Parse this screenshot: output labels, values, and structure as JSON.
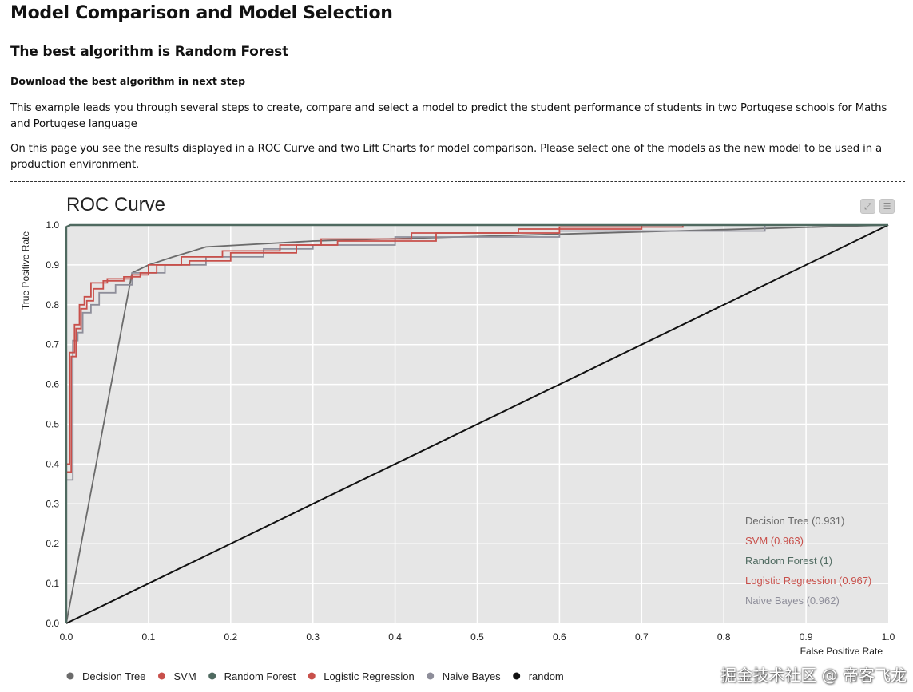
{
  "page": {
    "title": "Model Comparison and Model Selection",
    "subtitle": "The best algorithm is Random Forest",
    "download_note": "Download the best algorithm in next step",
    "paragraph1": "This example leads you through several steps to create, compare and select a model to predict the student performance of students in two Portugese schools for Maths and Portugese language",
    "paragraph2": "On this page you see the results displayed in a ROC Curve and two Lift Charts for model comparison. Please select one of the models as the new model to be used in a production environment."
  },
  "toolbar": {
    "expand_icon": "expand-icon",
    "menu_icon": "menu-icon"
  },
  "watermark": "掘金技术社区 @ 帝客飞龙",
  "chart_data": {
    "type": "line",
    "title": "ROC Curve",
    "xlabel": "False Positive Rate",
    "ylabel": "True Positive Rate",
    "xlim": [
      0,
      1
    ],
    "ylim": [
      0,
      1
    ],
    "grid": true,
    "x_ticks": [
      "0.0",
      "0.1",
      "0.2",
      "0.3",
      "0.4",
      "0.5",
      "0.6",
      "0.7",
      "0.8",
      "0.9",
      "1.0"
    ],
    "y_ticks": [
      "0.0",
      "0.1",
      "0.2",
      "0.3",
      "0.4",
      "0.5",
      "0.6",
      "0.7",
      "0.8",
      "0.9",
      "1.0"
    ],
    "inner_legend_placement": "bottom-right",
    "bottom_legend_placement": "bottom",
    "series": [
      {
        "name": "Decision Tree",
        "auc_label": "Decision Tree (0.931)",
        "color": "#6b6b6b",
        "step": false,
        "points": [
          [
            0,
            0
          ],
          [
            0.08,
            0.88
          ],
          [
            0.1,
            0.9
          ],
          [
            0.13,
            0.92
          ],
          [
            0.17,
            0.945
          ],
          [
            0.3,
            0.96
          ],
          [
            1,
            1
          ]
        ]
      },
      {
        "name": "SVM",
        "auc_label": "SVM (0.963)",
        "color": "#c8504b",
        "step": true,
        "points": [
          [
            0,
            0
          ],
          [
            0,
            0.38
          ],
          [
            0.006,
            0.38
          ],
          [
            0.006,
            0.67
          ],
          [
            0.012,
            0.67
          ],
          [
            0.012,
            0.74
          ],
          [
            0.018,
            0.74
          ],
          [
            0.018,
            0.79
          ],
          [
            0.025,
            0.79
          ],
          [
            0.025,
            0.81
          ],
          [
            0.033,
            0.81
          ],
          [
            0.033,
            0.84
          ],
          [
            0.045,
            0.84
          ],
          [
            0.045,
            0.86
          ],
          [
            0.07,
            0.86
          ],
          [
            0.07,
            0.87
          ],
          [
            0.09,
            0.87
          ],
          [
            0.09,
            0.88
          ],
          [
            0.11,
            0.88
          ],
          [
            0.11,
            0.9
          ],
          [
            0.15,
            0.9
          ],
          [
            0.15,
            0.91
          ],
          [
            0.2,
            0.91
          ],
          [
            0.2,
            0.93
          ],
          [
            0.28,
            0.93
          ],
          [
            0.28,
            0.95
          ],
          [
            0.33,
            0.95
          ],
          [
            0.33,
            0.96
          ],
          [
            0.45,
            0.96
          ],
          [
            0.45,
            0.98
          ],
          [
            0.6,
            0.98
          ],
          [
            0.6,
            0.995
          ],
          [
            0.75,
            0.995
          ],
          [
            0.75,
            1
          ],
          [
            1,
            1
          ]
        ]
      },
      {
        "name": "Random Forest",
        "auc_label": "Random Forest (1)",
        "color": "#4f6a60",
        "step": false,
        "points": [
          [
            0,
            0
          ],
          [
            0,
            0.995
          ],
          [
            0.005,
            1
          ],
          [
            1,
            1
          ]
        ]
      },
      {
        "name": "Logistic Regression",
        "auc_label": "Logistic Regression (0.967)",
        "color": "#c8504b",
        "step": true,
        "points": [
          [
            0,
            0
          ],
          [
            0,
            0.4
          ],
          [
            0.004,
            0.4
          ],
          [
            0.004,
            0.68
          ],
          [
            0.01,
            0.68
          ],
          [
            0.01,
            0.75
          ],
          [
            0.016,
            0.75
          ],
          [
            0.016,
            0.8
          ],
          [
            0.022,
            0.8
          ],
          [
            0.022,
            0.82
          ],
          [
            0.03,
            0.82
          ],
          [
            0.03,
            0.855
          ],
          [
            0.05,
            0.855
          ],
          [
            0.05,
            0.865
          ],
          [
            0.08,
            0.865
          ],
          [
            0.08,
            0.875
          ],
          [
            0.1,
            0.875
          ],
          [
            0.1,
            0.9
          ],
          [
            0.14,
            0.9
          ],
          [
            0.14,
            0.92
          ],
          [
            0.19,
            0.92
          ],
          [
            0.19,
            0.935
          ],
          [
            0.26,
            0.935
          ],
          [
            0.26,
            0.95
          ],
          [
            0.31,
            0.95
          ],
          [
            0.31,
            0.965
          ],
          [
            0.42,
            0.965
          ],
          [
            0.42,
            0.98
          ],
          [
            0.55,
            0.98
          ],
          [
            0.55,
            0.99
          ],
          [
            0.7,
            0.99
          ],
          [
            0.7,
            1
          ],
          [
            1,
            1
          ]
        ]
      },
      {
        "name": "Naive Bayes",
        "auc_label": "Naive Bayes (0.962)",
        "color": "#8e8e9a",
        "step": true,
        "points": [
          [
            0,
            0
          ],
          [
            0,
            0.36
          ],
          [
            0.008,
            0.36
          ],
          [
            0.008,
            0.71
          ],
          [
            0.014,
            0.71
          ],
          [
            0.014,
            0.73
          ],
          [
            0.02,
            0.73
          ],
          [
            0.02,
            0.78
          ],
          [
            0.03,
            0.78
          ],
          [
            0.03,
            0.8
          ],
          [
            0.04,
            0.8
          ],
          [
            0.04,
            0.83
          ],
          [
            0.06,
            0.83
          ],
          [
            0.06,
            0.85
          ],
          [
            0.08,
            0.85
          ],
          [
            0.08,
            0.88
          ],
          [
            0.12,
            0.88
          ],
          [
            0.12,
            0.9
          ],
          [
            0.17,
            0.9
          ],
          [
            0.17,
            0.92
          ],
          [
            0.24,
            0.92
          ],
          [
            0.24,
            0.94
          ],
          [
            0.3,
            0.94
          ],
          [
            0.3,
            0.95
          ],
          [
            0.4,
            0.95
          ],
          [
            0.4,
            0.97
          ],
          [
            0.6,
            0.97
          ],
          [
            0.6,
            0.985
          ],
          [
            0.85,
            0.985
          ],
          [
            0.85,
            1
          ],
          [
            1,
            1
          ]
        ]
      },
      {
        "name": "random",
        "auc_label": "",
        "color": "#111111",
        "step": false,
        "points": [
          [
            0,
            0
          ],
          [
            1,
            1
          ]
        ]
      }
    ]
  }
}
